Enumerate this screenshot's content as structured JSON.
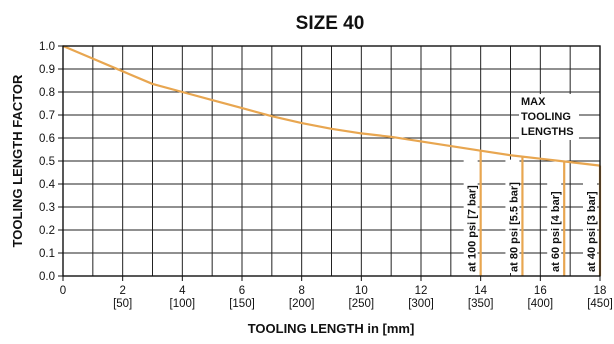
{
  "chart_data": {
    "type": "line",
    "title": "SIZE 40",
    "xlabel": "TOOLING LENGTH  in [mm]",
    "ylabel": "TOOLING LENGTH FACTOR",
    "xlim": [
      0,
      18
    ],
    "ylim": [
      0,
      1.0
    ],
    "x_ticks": [
      {
        "value": 0,
        "label": "0",
        "sub": ""
      },
      {
        "value": 2,
        "label": "2",
        "sub": "[50]"
      },
      {
        "value": 4,
        "label": "4",
        "sub": "[100]"
      },
      {
        "value": 6,
        "label": "6",
        "sub": "[150]"
      },
      {
        "value": 8,
        "label": "8",
        "sub": "[200]"
      },
      {
        "value": 10,
        "label": "10",
        "sub": "[250]"
      },
      {
        "value": 12,
        "label": "12",
        "sub": "[300]"
      },
      {
        "value": 14,
        "label": "14",
        "sub": "[350]"
      },
      {
        "value": 16,
        "label": "16",
        "sub": "[400]"
      },
      {
        "value": 18,
        "label": "18",
        "sub": "[450]"
      }
    ],
    "y_ticks": [
      "0.0",
      "0.1",
      "0.2",
      "0.3",
      "0.4",
      "0.5",
      "0.6",
      "0.7",
      "0.8",
      "0.9",
      "1.0"
    ],
    "grid": true,
    "series": [
      {
        "x": [
          0,
          1,
          2,
          3,
          4,
          5,
          6,
          7,
          8,
          9,
          10,
          11,
          12,
          13,
          14,
          15,
          16,
          17,
          18
        ],
        "y": [
          1.0,
          0.945,
          0.89,
          0.835,
          0.8,
          0.765,
          0.73,
          0.695,
          0.665,
          0.64,
          0.62,
          0.605,
          0.585,
          0.565,
          0.545,
          0.525,
          0.51,
          0.495,
          0.48
        ]
      }
    ],
    "max_lengths": [
      {
        "x": 14.0,
        "label": "at 100 psi [7 bar]"
      },
      {
        "x": 15.4,
        "label": "at 80 psi [5.5 bar]"
      },
      {
        "x": 16.8,
        "label": "at 60 psi [4 bar]"
      },
      {
        "x": 18.0,
        "label": "at 40 psi [3 bar]"
      }
    ],
    "annotation": [
      "MAX",
      "TOOLING",
      "LENGTHS"
    ],
    "line_color": "#E8A650"
  }
}
